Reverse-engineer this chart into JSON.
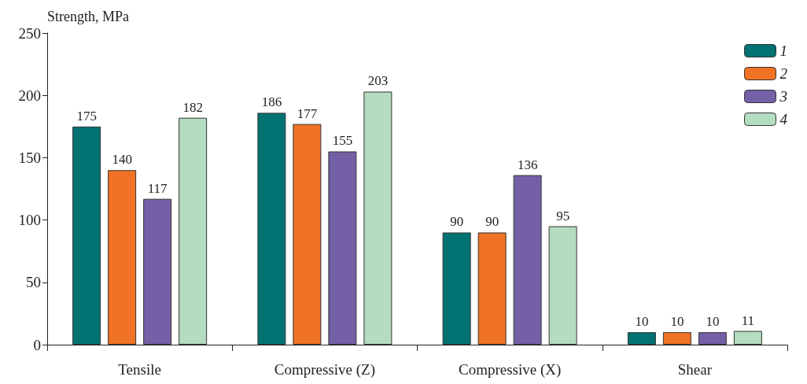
{
  "chart_data": {
    "type": "bar",
    "ylabel": "Strength, MPa",
    "categories": [
      "Tensile",
      "Compressive (Z)",
      "Compressive (X)",
      "Shear"
    ],
    "series": [
      {
        "name": "1",
        "color": "#007272",
        "values": [
          175,
          186,
          90,
          10
        ]
      },
      {
        "name": "2",
        "color": "#f07224",
        "values": [
          140,
          177,
          90,
          10
        ]
      },
      {
        "name": "3",
        "color": "#7460a6",
        "values": [
          117,
          155,
          136,
          10
        ]
      },
      {
        "name": "4",
        "color": "#b4dcc0",
        "values": [
          182,
          203,
          95,
          11
        ]
      }
    ],
    "ylim": [
      0,
      250
    ],
    "yticks": [
      0,
      50,
      100,
      150,
      200,
      250
    ],
    "grid": false,
    "legend": "top right",
    "data_labels": true
  }
}
